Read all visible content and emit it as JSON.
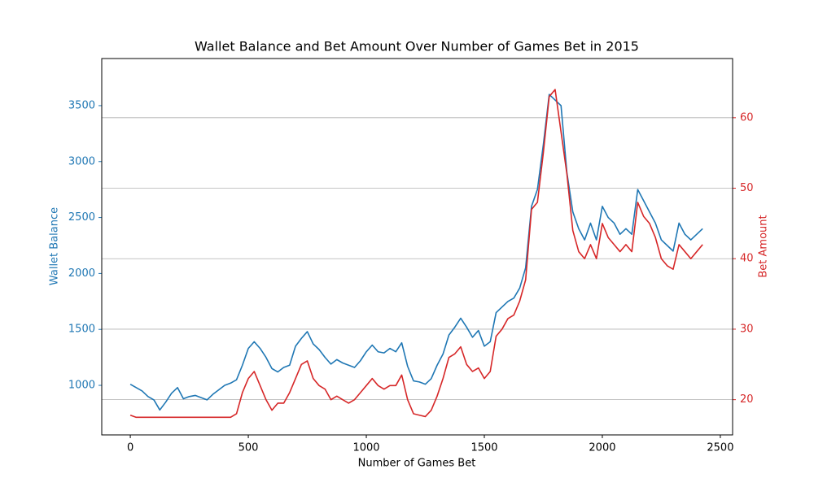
{
  "chart_data": {
    "type": "line",
    "title": "Wallet Balance and Bet Amount Over Number of Games Bet in 2015",
    "x_label": "Number of Games Bet",
    "y_label": "Wallet Balance",
    "y2_label": "Bet Amount",
    "x": [
      0,
      25,
      50,
      75,
      100,
      125,
      150,
      175,
      200,
      225,
      250,
      275,
      300,
      325,
      350,
      375,
      400,
      425,
      450,
      475,
      500,
      525,
      550,
      575,
      600,
      625,
      650,
      675,
      700,
      725,
      750,
      775,
      800,
      825,
      850,
      875,
      900,
      925,
      950,
      975,
      1000,
      1025,
      1050,
      1075,
      1100,
      1125,
      1150,
      1175,
      1200,
      1225,
      1250,
      1275,
      1300,
      1325,
      1350,
      1375,
      1400,
      1425,
      1450,
      1475,
      1500,
      1525,
      1550,
      1575,
      1600,
      1625,
      1650,
      1675,
      1700,
      1725,
      1750,
      1775,
      1800,
      1825,
      1850,
      1875,
      1900,
      1925,
      1950,
      1975,
      2000,
      2025,
      2050,
      2075,
      2100,
      2125,
      2150,
      2175,
      2200,
      2225,
      2250,
      2275,
      2300,
      2325,
      2350,
      2375,
      2400,
      2425
    ],
    "series": [
      {
        "name": "Wallet Balance",
        "color": "#1f77b4",
        "axis": "y",
        "values": [
          1010,
          980,
          950,
          900,
          870,
          780,
          850,
          930,
          980,
          880,
          900,
          910,
          890,
          870,
          920,
          960,
          1000,
          1020,
          1050,
          1180,
          1330,
          1390,
          1330,
          1250,
          1150,
          1120,
          1160,
          1180,
          1350,
          1420,
          1480,
          1370,
          1320,
          1250,
          1190,
          1230,
          1200,
          1180,
          1160,
          1220,
          1300,
          1360,
          1300,
          1290,
          1330,
          1300,
          1380,
          1170,
          1040,
          1030,
          1010,
          1060,
          1180,
          1280,
          1450,
          1520,
          1600,
          1520,
          1430,
          1490,
          1350,
          1390,
          1650,
          1700,
          1750,
          1780,
          1870,
          2050,
          2600,
          2750,
          3150,
          3600,
          3550,
          3500,
          2900,
          2550,
          2400,
          2300,
          2450,
          2300,
          2600,
          2500,
          2450,
          2350,
          2400,
          2350,
          2750,
          2650,
          2550,
          2450,
          2300,
          2250,
          2200,
          2450,
          2350,
          2300,
          2350,
          2400
        ]
      },
      {
        "name": "Bet Amount",
        "color": "#d62728",
        "axis": "y2",
        "values": [
          17.8,
          17.5,
          17.5,
          17.5,
          17.5,
          17.5,
          17.5,
          17.5,
          17.5,
          17.5,
          17.5,
          17.5,
          17.5,
          17.5,
          17.5,
          17.5,
          17.5,
          17.5,
          18,
          21,
          23,
          24,
          22,
          20,
          18.5,
          19.5,
          19.5,
          21,
          23,
          25,
          25.5,
          23,
          22,
          21.5,
          20,
          20.5,
          20,
          19.5,
          20,
          21,
          22,
          23,
          22,
          21.5,
          22,
          22,
          23.5,
          20,
          18,
          17.8,
          17.6,
          18.5,
          20.5,
          23,
          26,
          26.5,
          27.5,
          25,
          24,
          24.5,
          23,
          24,
          29,
          30,
          31.5,
          32,
          34,
          37,
          47,
          48,
          55,
          63,
          64,
          58,
          52,
          44,
          41,
          40,
          42,
          40,
          45,
          43,
          42,
          41,
          42,
          41,
          48,
          46,
          45,
          43,
          40,
          39,
          38.5,
          42,
          41,
          40,
          41,
          42
        ]
      }
    ],
    "xlim": [
      -121,
      2552
    ],
    "xticks": [
      0,
      500,
      1000,
      1500,
      2000,
      2500
    ],
    "ylim": [
      557,
      3921
    ],
    "yticks": [
      1000,
      1500,
      2000,
      2500,
      3000,
      3500
    ],
    "y2lim": [
      15.0,
      68.4
    ],
    "y2ticks": [
      20,
      30,
      40,
      50,
      60
    ],
    "grid": "y2"
  }
}
